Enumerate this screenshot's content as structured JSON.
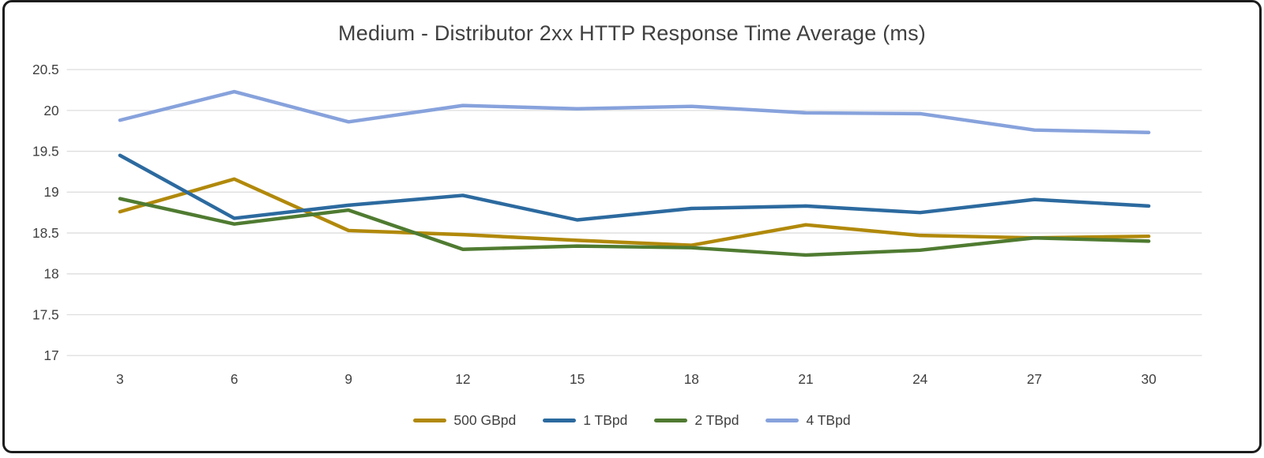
{
  "chart_data": {
    "type": "line",
    "title": "Medium - Distributor 2xx HTTP Response Time Average (ms)",
    "x": [
      3,
      6,
      9,
      12,
      15,
      18,
      21,
      24,
      27,
      30
    ],
    "xlabel": "",
    "ylabel": "",
    "ylim": [
      17,
      20.5
    ],
    "y_ticks": [
      17,
      17.5,
      18,
      18.5,
      19,
      19.5,
      20,
      20.5
    ],
    "grid": "horizontal",
    "grid_color": "#dedede",
    "text_color": "#404040",
    "legend_position": "bottom",
    "series": [
      {
        "name": "500 GBpd",
        "color": "#B1890B",
        "values": [
          18.76,
          19.16,
          18.53,
          18.48,
          18.41,
          18.35,
          18.6,
          18.47,
          18.44,
          18.46
        ]
      },
      {
        "name": "1 TBpd",
        "color": "#2C6A9F",
        "values": [
          19.45,
          18.68,
          18.84,
          18.96,
          18.66,
          18.8,
          18.83,
          18.75,
          18.91,
          18.83
        ]
      },
      {
        "name": "2 TBpd",
        "color": "#4F7B31",
        "values": [
          18.92,
          18.61,
          18.78,
          18.3,
          18.34,
          18.32,
          18.23,
          18.29,
          18.44,
          18.4
        ]
      },
      {
        "name": "4 TBpd",
        "color": "#87A2DC",
        "values": [
          19.88,
          20.23,
          19.86,
          20.06,
          20.02,
          20.05,
          19.97,
          19.96,
          19.76,
          19.73
        ]
      }
    ]
  }
}
